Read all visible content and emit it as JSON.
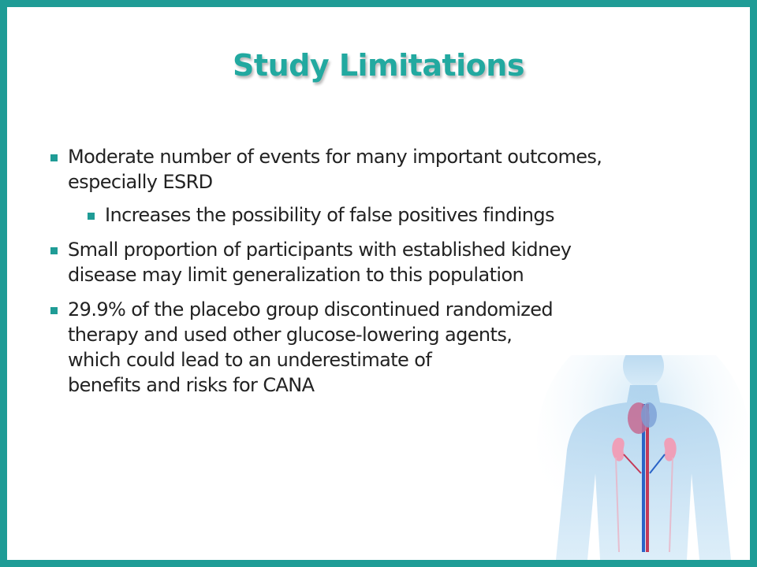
{
  "slide": {
    "title": "Study Limitations",
    "bullets": [
      {
        "lines": [
          "Moderate number of events for many important outcomes,",
          "especially ESRD"
        ],
        "sub": {
          "lines": [
            "Increases the possibility of false positives findings"
          ]
        }
      },
      {
        "lines": [
          "Small proportion of participants with established kidney",
          "disease may limit generalization to this population"
        ]
      },
      {
        "lines": [
          "29.9% of the placebo group discontinued randomized",
          "therapy and used other glucose-lowering agents,",
          "which could lead to an underestimate of",
          "benefits and risks for CANA"
        ]
      }
    ]
  },
  "colors": {
    "frame": "#1f9c96",
    "title": "#22a9a0",
    "bullet": "#1f9c96",
    "text": "#222222",
    "background": "#ffffff"
  },
  "illustration": "human-torso-kidney-heart"
}
